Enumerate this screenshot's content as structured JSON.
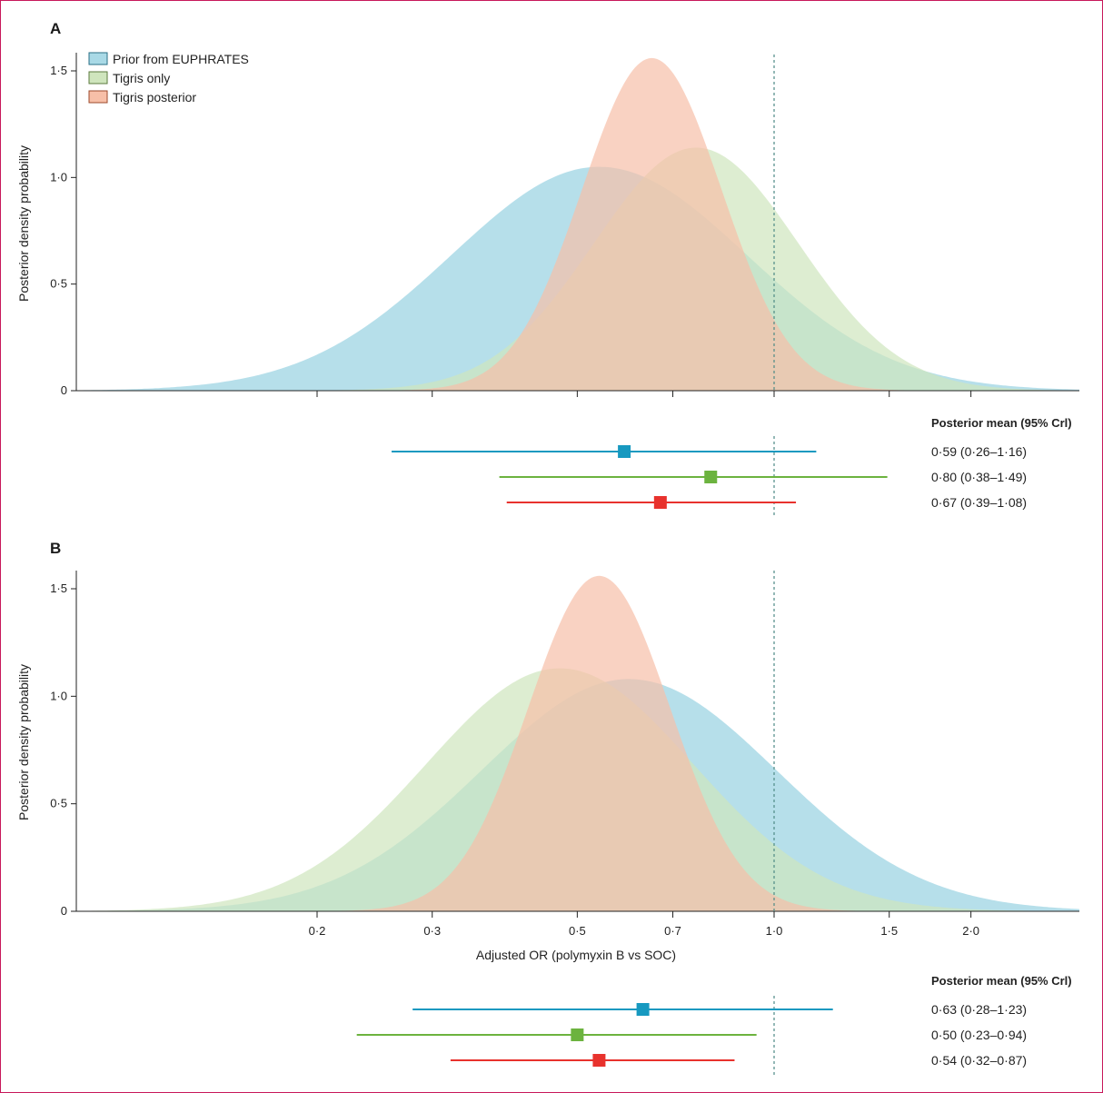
{
  "legend": [
    {
      "label": "Prior from EUPHRATES",
      "fill": "#a9d9e6",
      "stroke": "#2a6f86"
    },
    {
      "label": "Tigris only",
      "fill": "#cfe5bd",
      "stroke": "#5b7a3e"
    },
    {
      "label": "Tigris posterior",
      "fill": "#f7bfa8",
      "stroke": "#9c4a2b"
    }
  ],
  "colors": {
    "prior_fill": "#a9d9e6",
    "tigris_only_fill": "#cfe5bd",
    "posterior_fill": "#f7bfa8",
    "prior_marker": "#1799c0",
    "tigris_only_marker": "#6cb33f",
    "posterior_marker": "#e8322d",
    "axis": "#222222",
    "reference_line": "#4e8a85",
    "frame": "#c8185a"
  },
  "chart_data": [
    {
      "panel": "A",
      "type": "area",
      "x_scale": "log",
      "xlabel": "",
      "ylabel": "Posterior density probability",
      "xlim": [
        0.1,
        2.6
      ],
      "ylim": [
        0,
        1.6
      ],
      "y_ticks": [
        "0",
        "0·5",
        "1·0",
        "1·5"
      ],
      "x_ticks": [
        0.2,
        0.3,
        0.5,
        0.7,
        1.0,
        1.5,
        2.0
      ],
      "x_tick_labels": [],
      "reference_x": 1.0,
      "series": [
        {
          "name": "Prior from EUPHRATES",
          "key": "prior",
          "mode": 0.54,
          "peak": 1.05,
          "sd": 0.52
        },
        {
          "name": "Tigris only",
          "key": "tigris_only",
          "mode": 0.76,
          "peak": 1.14,
          "sd": 0.36
        },
        {
          "name": "Tigris posterior",
          "key": "posterior",
          "mode": 0.65,
          "peak": 1.56,
          "sd": 0.245
        }
      ],
      "forest": {
        "header": "Posterior mean (95% Crl)",
        "rows": [
          {
            "key": "prior",
            "mean": 0.59,
            "lower": 0.26,
            "upper": 1.16,
            "label": "0·59 (0·26–1·16)"
          },
          {
            "key": "tigris_only",
            "mean": 0.8,
            "lower": 0.38,
            "upper": 1.49,
            "label": "0·80 (0·38–1·49)"
          },
          {
            "key": "posterior",
            "mean": 0.67,
            "lower": 0.39,
            "upper": 1.08,
            "label": "0·67 (0·39–1·08)"
          }
        ]
      }
    },
    {
      "panel": "B",
      "type": "area",
      "x_scale": "log",
      "xlabel": "Adjusted OR (polymyxin B vs SOC)",
      "ylabel": "Posterior density probability",
      "xlim": [
        0.1,
        2.6
      ],
      "ylim": [
        0,
        1.6
      ],
      "y_ticks": [
        "0",
        "0·5",
        "1·0",
        "1·5"
      ],
      "x_ticks": [
        0.2,
        0.3,
        0.5,
        0.7,
        1.0,
        1.5,
        2.0
      ],
      "x_tick_labels": [
        "0·2",
        "0·3",
        "0·5",
        "0·7",
        "1·0",
        "1·5",
        "2·0"
      ],
      "reference_x": 1.0,
      "series": [
        {
          "name": "Prior from EUPHRATES",
          "key": "prior",
          "mode": 0.6,
          "peak": 1.08,
          "sd": 0.52
        },
        {
          "name": "Tigris only",
          "key": "tigris_only",
          "mode": 0.47,
          "peak": 1.13,
          "sd": 0.47
        },
        {
          "name": "Tigris posterior",
          "key": "posterior",
          "mode": 0.54,
          "peak": 1.56,
          "sd": 0.25
        }
      ],
      "forest": {
        "header": "Posterior mean (95% Crl)",
        "rows": [
          {
            "key": "prior",
            "mean": 0.63,
            "lower": 0.28,
            "upper": 1.23,
            "label": "0·63 (0·28–1·23)"
          },
          {
            "key": "tigris_only",
            "mean": 0.5,
            "lower": 0.23,
            "upper": 0.94,
            "label": "0·50 (0·23–0·94)"
          },
          {
            "key": "posterior",
            "mean": 0.54,
            "lower": 0.32,
            "upper": 0.87,
            "label": "0·54 (0·32–0·87)"
          }
        ]
      }
    }
  ]
}
